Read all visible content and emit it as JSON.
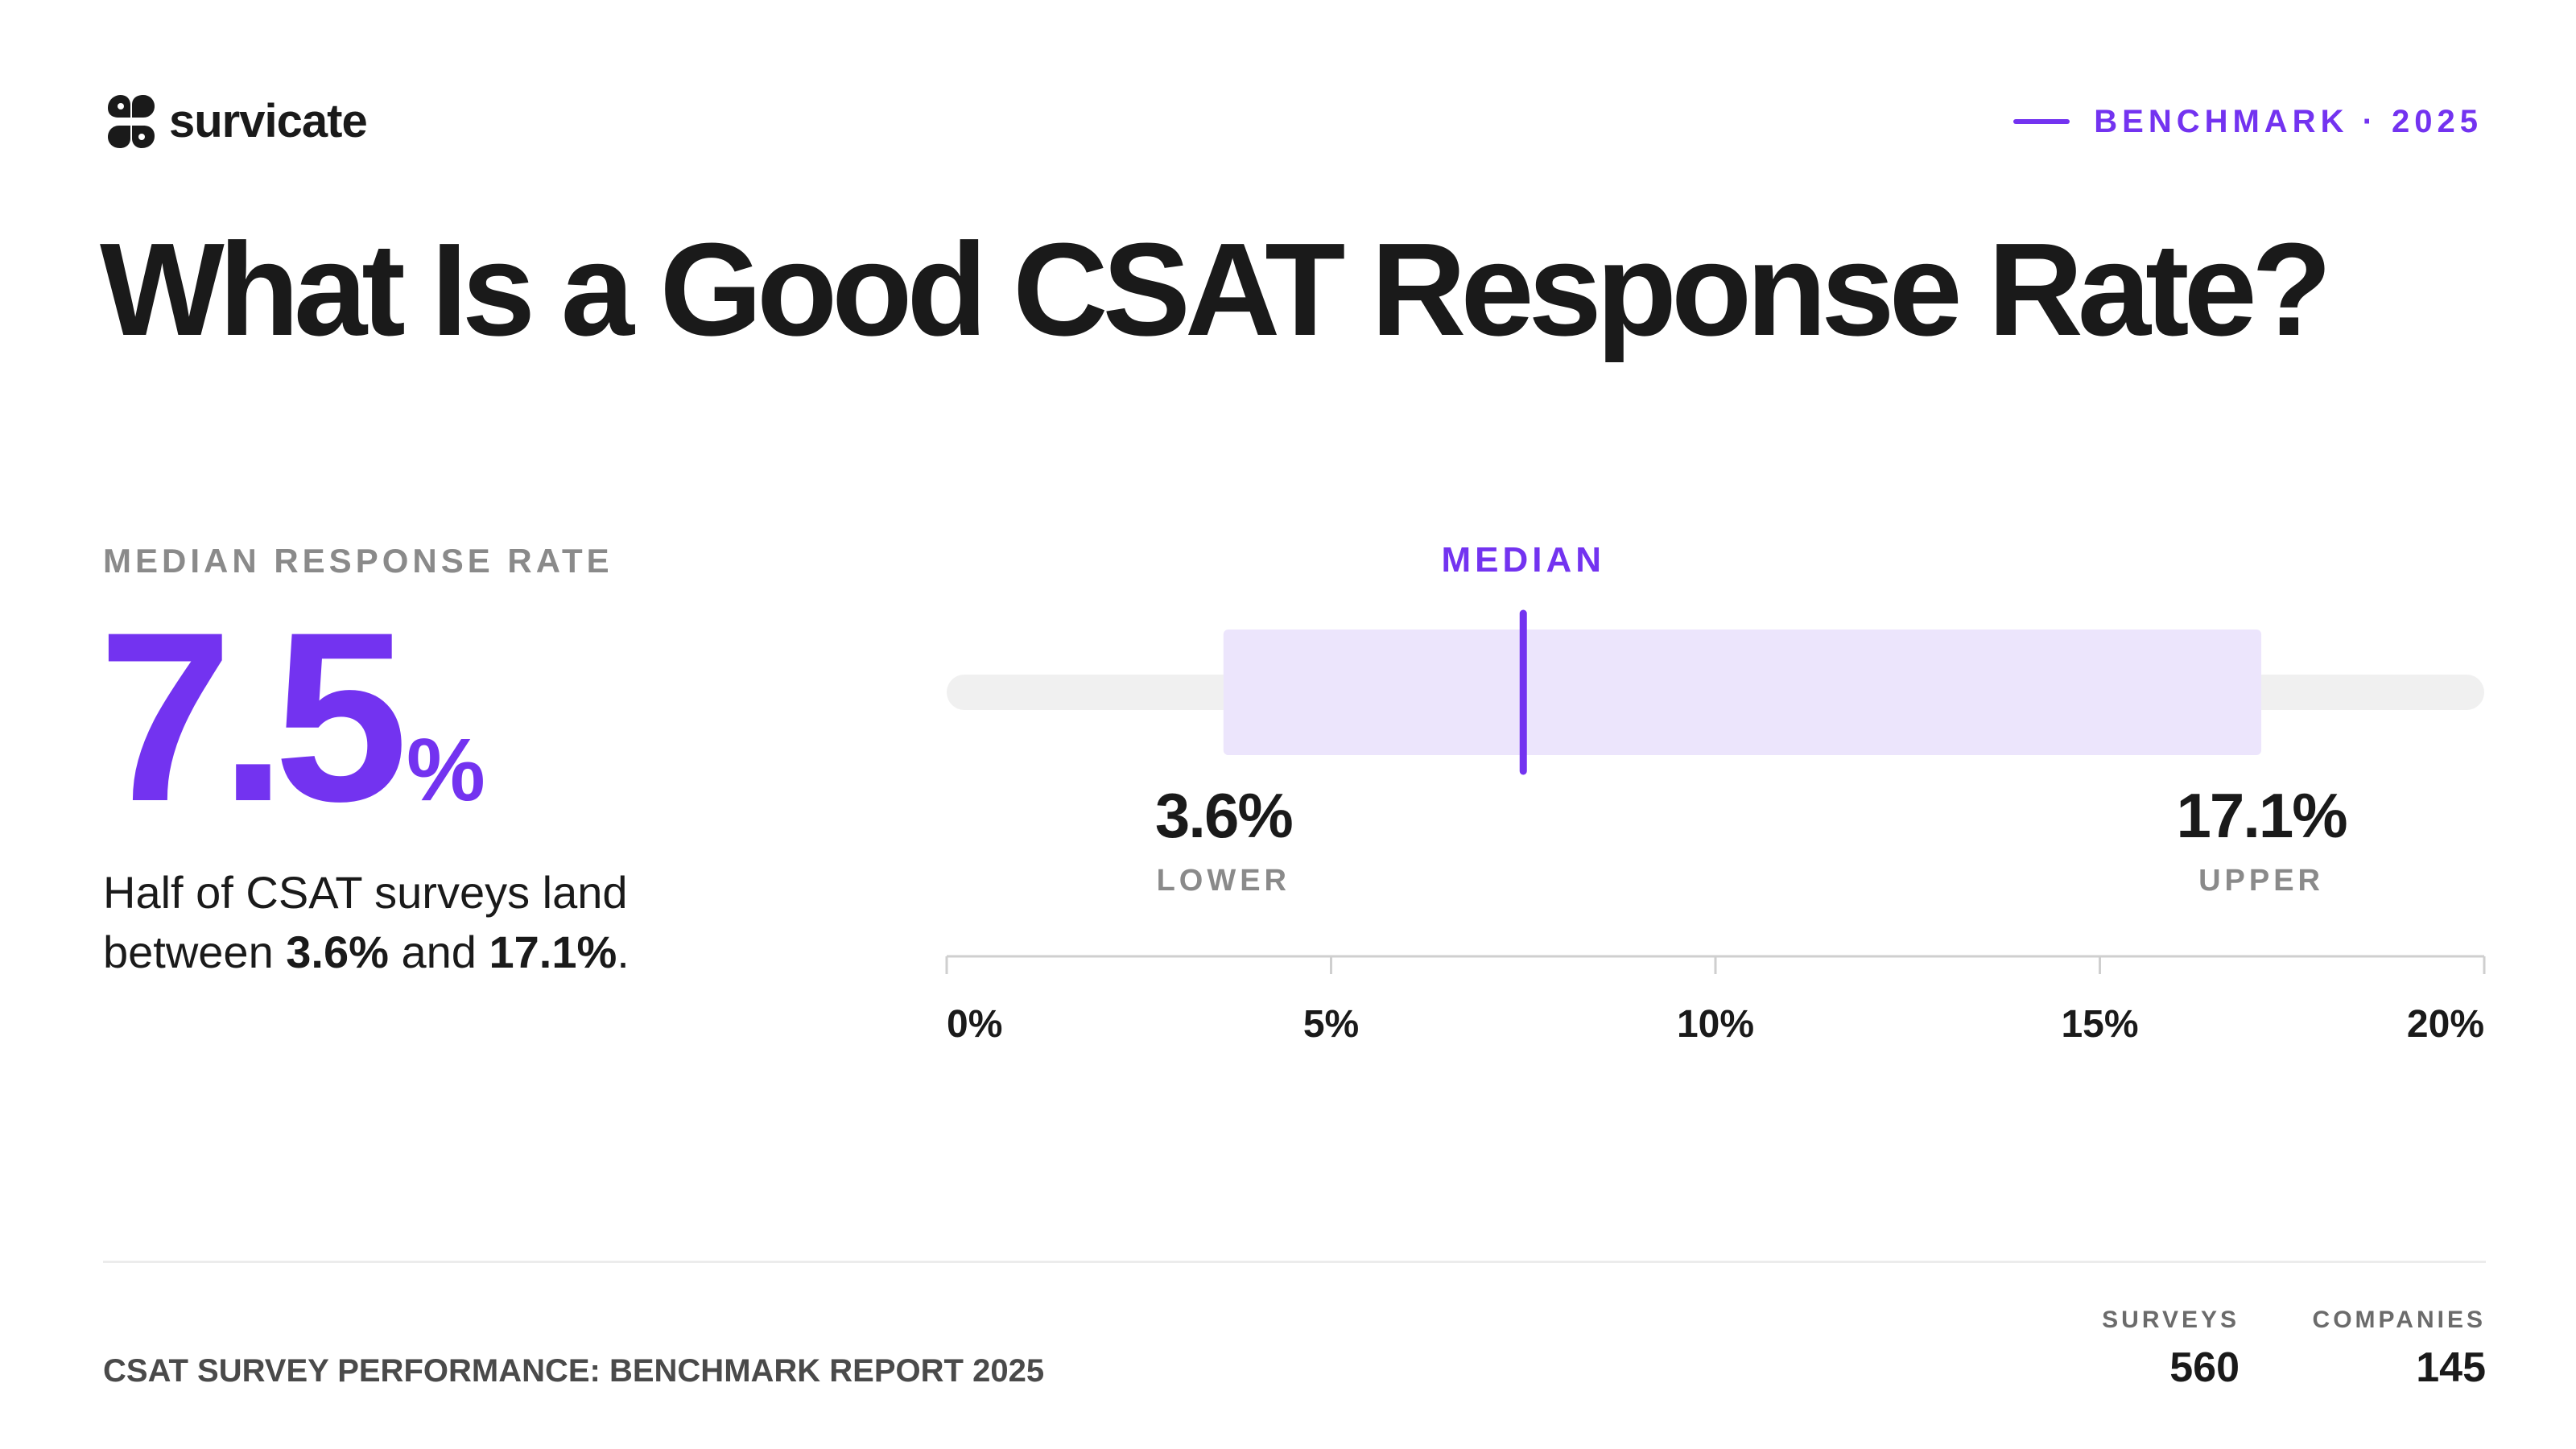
{
  "brand": {
    "name": "survicate",
    "logo_icon": "survicate-logo-mark"
  },
  "header": {
    "tag": "BENCHMARK · 2025",
    "accent_color": "#7333f0"
  },
  "title": "What Is a Good CSAT Response Rate?",
  "stat": {
    "label": "MEDIAN RESPONSE RATE",
    "value": "7.5",
    "unit": "%",
    "desc_prefix": "Half of CSAT surveys land between ",
    "desc_low": "3.6%",
    "desc_mid": " and ",
    "desc_high": "17.1%",
    "desc_suffix": "."
  },
  "chart_data": {
    "type": "range",
    "median": 7.5,
    "median_label": "MEDIAN",
    "lower": 3.6,
    "lower_text": "3.6%",
    "lower_label": "LOWER",
    "upper": 17.1,
    "upper_text": "17.1%",
    "upper_label": "UPPER",
    "xlim": [
      0,
      20
    ],
    "ticks": [
      0,
      5,
      10,
      15,
      20
    ],
    "tick_labels": [
      "0%",
      "5%",
      "10%",
      "15%",
      "20%"
    ],
    "colors": {
      "track": "#f0f0f0",
      "band": "#ece5fc",
      "median": "#7333f0",
      "axis": "#cfcfcf"
    }
  },
  "footer": {
    "report_title": "CSAT SURVEY PERFORMANCE: BENCHMARK REPORT 2025",
    "surveys_label": "SURVEYS",
    "surveys_value": "560",
    "companies_label": "COMPANIES",
    "companies_value": "145"
  }
}
